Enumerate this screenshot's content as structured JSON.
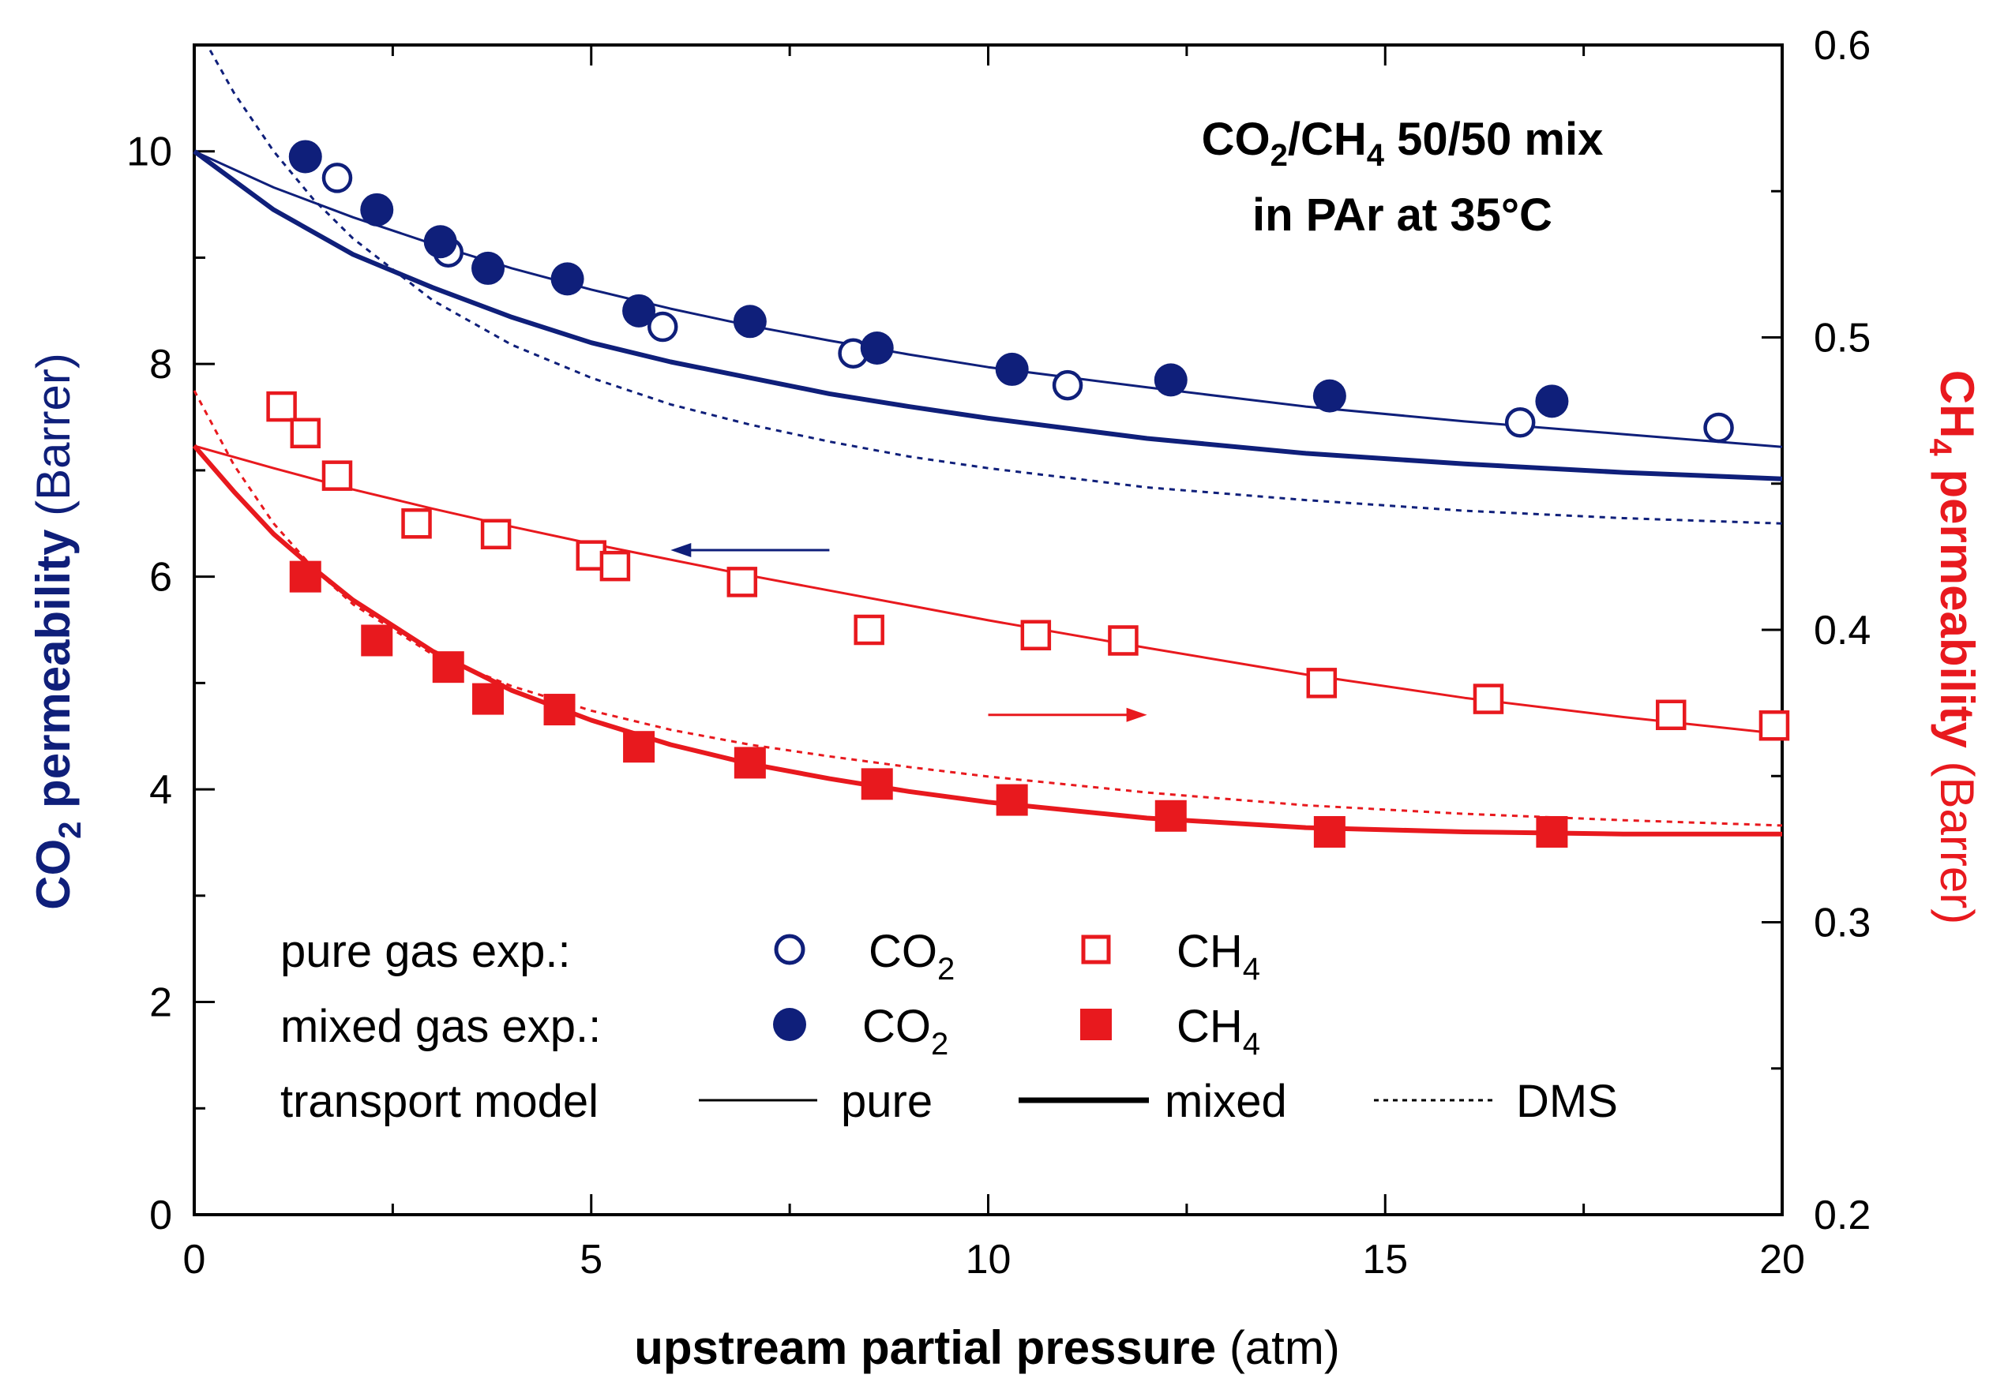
{
  "colors": {
    "co2": "#0f1f7a",
    "ch4": "#e8191e",
    "axis": "#000000"
  },
  "chart_data": {
    "type": "scatter",
    "annotation": {
      "line1": {
        "a": "CO",
        "a_sub": "2",
        "b": "/CH",
        "b_sub": "4",
        "c": " 50/50 mix"
      },
      "line2": "in PAr at 35°C"
    },
    "x_axis": {
      "label_bold": "upstream partial pressure",
      "label_normal": " (atm)",
      "range": [
        0,
        20
      ],
      "ticks": [
        0,
        5,
        10,
        15,
        20
      ],
      "tick_labels": [
        "0",
        "5",
        "10",
        "15",
        "20"
      ]
    },
    "y_left": {
      "label_bold": "CO",
      "label_sub": "2",
      "label_bold2": " permeability",
      "label_normal": " (Barrer)",
      "range": [
        0,
        11
      ],
      "ticks": [
        0,
        2,
        4,
        6,
        8,
        10
      ],
      "tick_labels": [
        "0",
        "2",
        "4",
        "6",
        "8",
        "10"
      ]
    },
    "y_right": {
      "label_bold": "CH",
      "label_sub": "4",
      "label_bold2": " permeability",
      "label_normal": " (Barrer)",
      "range": [
        0.2,
        0.6
      ],
      "ticks": [
        0.2,
        0.3,
        0.4,
        0.5,
        0.6
      ],
      "tick_labels": [
        "0.2",
        "0.3",
        "0.4",
        "0.5",
        "0.6"
      ]
    },
    "arrows": [
      {
        "axis": "left",
        "x_from": 8.0,
        "x_to": 6.0,
        "y": 6.25
      },
      {
        "axis": "right",
        "x_from": 10.0,
        "x_to": 12.0,
        "y": 4.7
      }
    ],
    "legend": {
      "placement": "bottom-left",
      "row1_label": "pure gas exp.:",
      "row2_label": "mixed gas exp.:",
      "row3_label": "transport model",
      "co2_text": "CO",
      "co2_sub": "2",
      "ch4_text": "CH",
      "ch4_sub": "4",
      "pure_text": "pure",
      "mixed_text": "mixed",
      "dms_text": "DMS"
    },
    "series": [
      {
        "id": "co2_pure_exp",
        "kind": "points",
        "axis": "left",
        "marker": "circle-open",
        "color_key": "co2",
        "points": [
          [
            1.8,
            9.75
          ],
          [
            3.2,
            9.05
          ],
          [
            5.9,
            8.35
          ],
          [
            8.3,
            8.1
          ],
          [
            11.0,
            7.8
          ],
          [
            16.7,
            7.45
          ],
          [
            19.2,
            7.4
          ]
        ]
      },
      {
        "id": "co2_mixed_exp",
        "kind": "points",
        "axis": "left",
        "marker": "circle-filled",
        "color_key": "co2",
        "points": [
          [
            1.4,
            9.95
          ],
          [
            2.3,
            9.45
          ],
          [
            3.1,
            9.15
          ],
          [
            3.7,
            8.9
          ],
          [
            4.7,
            8.8
          ],
          [
            5.6,
            8.5
          ],
          [
            7.0,
            8.4
          ],
          [
            8.6,
            8.15
          ],
          [
            10.3,
            7.95
          ],
          [
            12.3,
            7.85
          ],
          [
            14.3,
            7.7
          ],
          [
            17.1,
            7.65
          ]
        ]
      },
      {
        "id": "ch4_pure_exp",
        "kind": "points",
        "axis": "left",
        "marker": "square-open",
        "color_key": "ch4",
        "points": [
          [
            1.1,
            7.6
          ],
          [
            1.4,
            7.35
          ],
          [
            1.8,
            6.95
          ],
          [
            2.8,
            6.5
          ],
          [
            3.8,
            6.4
          ],
          [
            5.0,
            6.2
          ],
          [
            5.3,
            6.1
          ],
          [
            6.9,
            5.95
          ],
          [
            8.5,
            5.5
          ],
          [
            10.6,
            5.45
          ],
          [
            11.7,
            5.4
          ],
          [
            14.2,
            5.0
          ],
          [
            16.3,
            4.85
          ],
          [
            18.6,
            4.7
          ],
          [
            19.9,
            4.6
          ]
        ]
      },
      {
        "id": "ch4_mixed_exp",
        "kind": "points",
        "axis": "left",
        "marker": "square-filled",
        "color_key": "ch4",
        "points": [
          [
            1.4,
            6.0
          ],
          [
            2.3,
            5.4
          ],
          [
            3.2,
            5.15
          ],
          [
            3.7,
            4.85
          ],
          [
            4.6,
            4.75
          ],
          [
            5.6,
            4.4
          ],
          [
            7.0,
            4.25
          ],
          [
            8.6,
            4.05
          ],
          [
            10.3,
            3.9
          ],
          [
            12.3,
            3.75
          ],
          [
            14.3,
            3.6
          ],
          [
            17.1,
            3.6
          ]
        ]
      },
      {
        "id": "co2_model_pure",
        "kind": "line",
        "style": "thin",
        "axis": "left",
        "color_key": "co2",
        "points": [
          [
            0,
            10.0
          ],
          [
            1,
            9.66
          ],
          [
            2,
            9.38
          ],
          [
            3,
            9.13
          ],
          [
            4,
            8.9
          ],
          [
            5,
            8.7
          ],
          [
            6,
            8.52
          ],
          [
            7,
            8.36
          ],
          [
            8,
            8.22
          ],
          [
            9,
            8.09
          ],
          [
            10,
            7.97
          ],
          [
            12,
            7.78
          ],
          [
            14,
            7.6
          ],
          [
            16,
            7.46
          ],
          [
            18,
            7.34
          ],
          [
            20,
            7.22
          ]
        ]
      },
      {
        "id": "co2_model_mixed",
        "kind": "line",
        "style": "thick",
        "axis": "left",
        "color_key": "co2",
        "points": [
          [
            0,
            10.0
          ],
          [
            1,
            9.45
          ],
          [
            2,
            9.03
          ],
          [
            3,
            8.72
          ],
          [
            4,
            8.44
          ],
          [
            5,
            8.2
          ],
          [
            6,
            8.02
          ],
          [
            7,
            7.87
          ],
          [
            8,
            7.72
          ],
          [
            9,
            7.6
          ],
          [
            10,
            7.49
          ],
          [
            12,
            7.3
          ],
          [
            14,
            7.16
          ],
          [
            16,
            7.06
          ],
          [
            18,
            6.98
          ],
          [
            20,
            6.92
          ]
        ]
      },
      {
        "id": "co2_model_dms",
        "kind": "line",
        "style": "dotted",
        "axis": "left",
        "color_key": "co2",
        "points": [
          [
            0.2,
            10.95
          ],
          [
            0.5,
            10.55
          ],
          [
            1,
            10.0
          ],
          [
            1.5,
            9.55
          ],
          [
            2,
            9.18
          ],
          [
            3,
            8.6
          ],
          [
            4,
            8.18
          ],
          [
            5,
            7.87
          ],
          [
            6,
            7.62
          ],
          [
            7,
            7.43
          ],
          [
            8,
            7.27
          ],
          [
            9,
            7.13
          ],
          [
            10,
            7.02
          ],
          [
            12,
            6.84
          ],
          [
            14,
            6.72
          ],
          [
            16,
            6.62
          ],
          [
            18,
            6.55
          ],
          [
            20,
            6.5
          ]
        ]
      },
      {
        "id": "ch4_model_pure",
        "kind": "line",
        "style": "thin",
        "axis": "left",
        "color_key": "ch4",
        "points": [
          [
            0,
            7.23
          ],
          [
            1,
            7.02
          ],
          [
            2,
            6.82
          ],
          [
            3,
            6.64
          ],
          [
            4,
            6.47
          ],
          [
            5,
            6.31
          ],
          [
            6,
            6.16
          ],
          [
            7,
            6.01
          ],
          [
            8,
            5.87
          ],
          [
            9,
            5.73
          ],
          [
            10,
            5.59
          ],
          [
            12,
            5.33
          ],
          [
            14,
            5.08
          ],
          [
            16,
            4.86
          ],
          [
            18,
            4.68
          ],
          [
            20,
            4.52
          ]
        ]
      },
      {
        "id": "ch4_model_mixed",
        "kind": "line",
        "style": "thick",
        "axis": "left",
        "color_key": "ch4",
        "points": [
          [
            0,
            7.23
          ],
          [
            0.5,
            6.8
          ],
          [
            1,
            6.4
          ],
          [
            1.5,
            6.08
          ],
          [
            2,
            5.78
          ],
          [
            3,
            5.3
          ],
          [
            4,
            4.93
          ],
          [
            5,
            4.65
          ],
          [
            6,
            4.42
          ],
          [
            7,
            4.24
          ],
          [
            8,
            4.1
          ],
          [
            9,
            3.98
          ],
          [
            10,
            3.88
          ],
          [
            12,
            3.73
          ],
          [
            14,
            3.64
          ],
          [
            16,
            3.6
          ],
          [
            18,
            3.58
          ],
          [
            20,
            3.58
          ]
        ]
      },
      {
        "id": "ch4_model_dms",
        "kind": "line",
        "style": "dotted",
        "axis": "left",
        "color_key": "ch4",
        "points": [
          [
            0,
            7.75
          ],
          [
            0.5,
            7.05
          ],
          [
            1,
            6.5
          ],
          [
            1.5,
            6.08
          ],
          [
            2,
            5.74
          ],
          [
            3,
            5.27
          ],
          [
            4,
            4.97
          ],
          [
            5,
            4.74
          ],
          [
            6,
            4.56
          ],
          [
            7,
            4.42
          ],
          [
            8,
            4.31
          ],
          [
            9,
            4.21
          ],
          [
            10,
            4.12
          ],
          [
            12,
            3.97
          ],
          [
            14,
            3.85
          ],
          [
            16,
            3.77
          ],
          [
            18,
            3.71
          ],
          [
            20,
            3.66
          ]
        ]
      }
    ]
  }
}
